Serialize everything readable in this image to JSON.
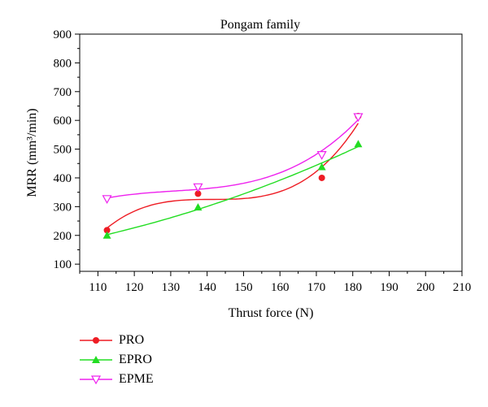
{
  "chart_data": {
    "type": "scatter",
    "title": "Pongam family",
    "xlabel": "Thrust force (N)",
    "ylabel": "MRR (mm³/min)",
    "xlim": [
      105,
      210
    ],
    "ylim": [
      75,
      900
    ],
    "xticks": [
      110,
      120,
      130,
      140,
      150,
      160,
      170,
      180,
      190,
      200,
      210
    ],
    "yticks": [
      100,
      200,
      300,
      400,
      500,
      600,
      700,
      800,
      900
    ],
    "grid": false,
    "legend_position": "below",
    "series": [
      {
        "name": "PRO",
        "color": "#ee1c24",
        "marker": "circle",
        "x": [
          112.5,
          137.5,
          171.5,
          181.5
        ],
        "y": [
          218,
          345,
          400,
          615
        ]
      },
      {
        "name": "EPRO",
        "color": "#22dd22",
        "marker": "triangle-up",
        "x": [
          112.5,
          137.5,
          171.5,
          181.5
        ],
        "y": [
          200,
          298,
          438,
          518
        ]
      },
      {
        "name": "EPME",
        "color": "#ee22ee",
        "marker": "triangle-down",
        "x": [
          112.5,
          137.5,
          171.5,
          181.5
        ],
        "y": [
          327,
          368,
          480,
          612
        ]
      }
    ]
  }
}
